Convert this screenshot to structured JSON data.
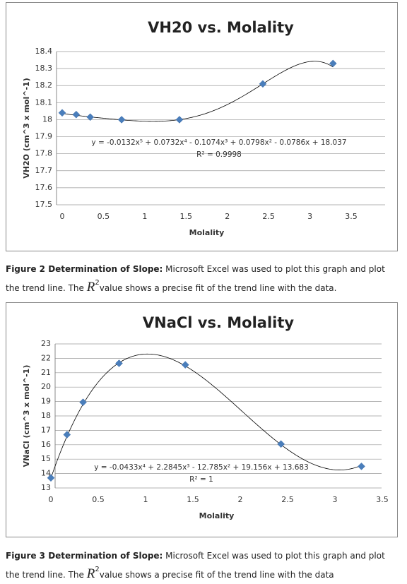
{
  "chart_data": [
    {
      "type": "scatter",
      "title": "VH20 vs. Molality",
      "x_label": "Molality",
      "y_label": "VH2O (cm^3 x mol^-1)",
      "series": [
        {
          "name": "VH20",
          "color": "#4a7ebb",
          "x": [
            0,
            0.17,
            0.34,
            0.72,
            1.42,
            2.43,
            3.28
          ],
          "values": [
            18.04,
            18.03,
            18.015,
            18.0,
            18.0,
            18.21,
            18.33
          ]
        }
      ],
      "xlim": [
        0,
        3.5
      ],
      "xticks": [
        0,
        0.5,
        1,
        1.5,
        2,
        2.5,
        3,
        3.5
      ],
      "ylim": [
        17.5,
        18.4
      ],
      "yticks": [
        17.5,
        17.6,
        17.7,
        17.8,
        17.9,
        18,
        18.1,
        18.2,
        18.3,
        18.4
      ],
      "grid": true,
      "trendline": {
        "coefficients": [
          -0.0132,
          0.0732,
          -0.1074,
          0.0798,
          -0.0786,
          18.037
        ],
        "equation": "y = -0.0132x⁵ + 0.0732x⁴ - 0.1074x³ + 0.0798x² - 0.0786x + 18.037",
        "r_squared": "R² = 0.9998"
      },
      "caption": {
        "label": "Figure 2 Determination of Slope:",
        "before": " Microsoft Excel was used to plot this graph and plot the trend line.  The ",
        "symbol": "R",
        "superscript": "2",
        "after": "value shows a precise fit of the trend line with the data."
      }
    },
    {
      "type": "scatter",
      "title": "VNaCl vs. Molality",
      "x_label": "Molality",
      "y_label": "VNaCl (cm^3 x mol^-1)",
      "series": [
        {
          "name": "VNaCl",
          "color": "#4a7ebb",
          "x": [
            0,
            0.17,
            0.34,
            0.72,
            1.42,
            2.43,
            3.28
          ],
          "values": [
            13.7,
            16.7,
            18.95,
            21.65,
            21.55,
            16.05,
            14.5
          ]
        }
      ],
      "xlim": [
        0,
        3.5
      ],
      "xticks": [
        0,
        0.5,
        1,
        1.5,
        2,
        2.5,
        3,
        3.5
      ],
      "ylim": [
        13,
        23
      ],
      "yticks": [
        13,
        14,
        15,
        16,
        17,
        18,
        19,
        20,
        21,
        22,
        23
      ],
      "grid": true,
      "trendline": {
        "coefficients": [
          -0.0433,
          2.2845,
          -12.785,
          19.156,
          13.683
        ],
        "equation": "y = -0.0433x⁴ + 2.2845x³ - 12.785x² + 19.156x + 13.683",
        "r_squared": "R² = 1"
      },
      "caption": {
        "label": "Figure 3 Determination of Slope:",
        "before": " Microsoft Excel was used to plot this graph and plot the trend line.  The ",
        "symbol": "R",
        "superscript": "2",
        "after": "value shows a precise fit of the trend line with the data"
      }
    }
  ]
}
